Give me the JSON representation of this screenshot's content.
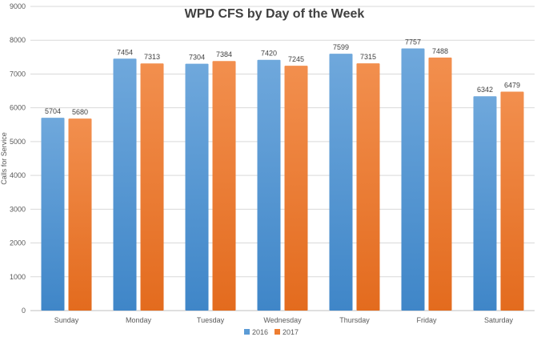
{
  "chart_data": {
    "type": "bar",
    "title": "WPD CFS by Day of the Week",
    "xlabel": "",
    "ylabel": "Calls for Service",
    "ylim": [
      0,
      9000
    ],
    "yticks": [
      0,
      1000,
      2000,
      3000,
      4000,
      5000,
      6000,
      7000,
      8000,
      9000
    ],
    "grid": true,
    "legend_position": "bottom",
    "categories": [
      "Sunday",
      "Monday",
      "Tuesday",
      "Wednesday",
      "Thursday",
      "Friday",
      "Saturday"
    ],
    "series": [
      {
        "name": "2016",
        "color": "#5b9bd5",
        "values": [
          5704,
          7454,
          7304,
          7420,
          7599,
          7757,
          6342
        ]
      },
      {
        "name": "2017",
        "color": "#ed7d31",
        "values": [
          5680,
          7313,
          7384,
          7245,
          7315,
          7488,
          6479
        ]
      }
    ]
  }
}
